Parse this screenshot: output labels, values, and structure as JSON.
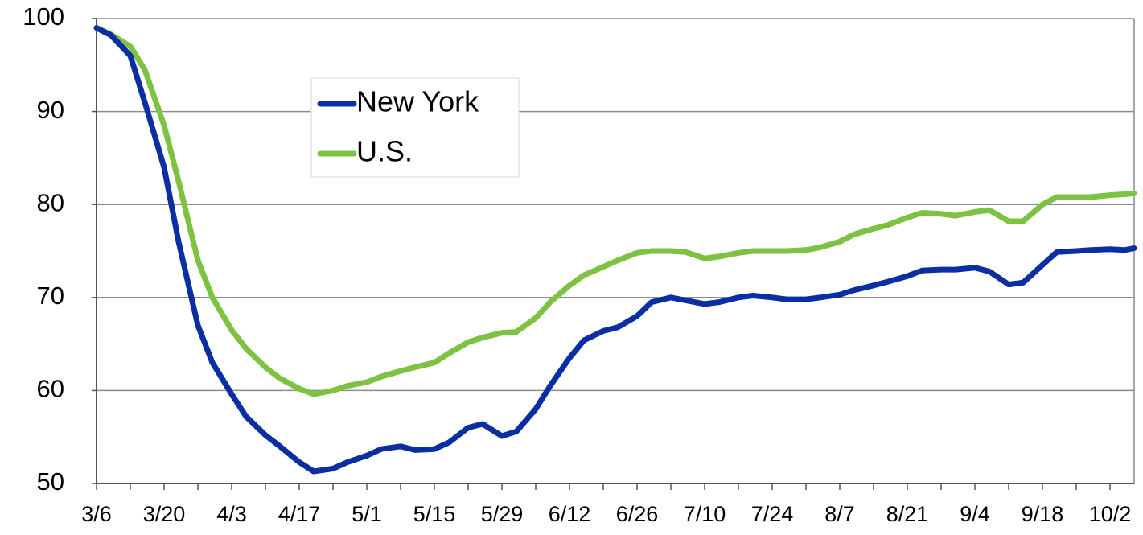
{
  "chart_data": {
    "type": "line",
    "x": [
      "3/6",
      "3/9",
      "3/13",
      "3/16",
      "3/20",
      "3/23",
      "3/27",
      "3/30",
      "4/3",
      "4/6",
      "4/10",
      "4/13",
      "4/17",
      "4/20",
      "4/24",
      "4/27",
      "5/1",
      "5/4",
      "5/8",
      "5/11",
      "5/15",
      "5/18",
      "5/22",
      "5/25",
      "5/29",
      "6/1",
      "6/5",
      "6/8",
      "6/12",
      "6/15",
      "6/19",
      "6/22",
      "6/26",
      "6/29",
      "7/3",
      "7/6",
      "7/10",
      "7/13",
      "7/17",
      "7/20",
      "7/24",
      "7/27",
      "7/31",
      "8/3",
      "8/7",
      "8/10",
      "8/14",
      "8/17",
      "8/21",
      "8/24",
      "8/28",
      "8/31",
      "9/4",
      "9/7",
      "9/11",
      "9/14",
      "9/18",
      "9/21",
      "9/25",
      "9/28",
      "10/2",
      "10/5",
      "10/7"
    ],
    "series": [
      {
        "name": "New York",
        "color": "#0b2ea3",
        "values": [
          99,
          98.2,
          96,
          91,
          84,
          76,
          67,
          63,
          59.6,
          57.2,
          55.2,
          54,
          52.3,
          51.3,
          51.6,
          52.3,
          53,
          53.7,
          54,
          53.6,
          53.7,
          54.4,
          56,
          56.4,
          55.1,
          55.6,
          58,
          60.5,
          63.5,
          65.4,
          66.4,
          66.8,
          68,
          69.5,
          70,
          69.7,
          69.3,
          69.5,
          70,
          70.2,
          70,
          69.8,
          69.8,
          70,
          70.3,
          70.8,
          71.3,
          71.7,
          72.3,
          72.9,
          73,
          73,
          73.2,
          72.8,
          71.4,
          71.6,
          73.5,
          74.9,
          75,
          75.1,
          75.2,
          75.1,
          75.3
        ]
      },
      {
        "name": "U.S.",
        "color": "#7dc242",
        "values": [
          99,
          98.3,
          97,
          94.5,
          88.5,
          82.5,
          74,
          70,
          66.5,
          64.5,
          62.5,
          61.3,
          60.2,
          59.6,
          60,
          60.5,
          60.9,
          61.5,
          62.1,
          62.5,
          63,
          64,
          65.2,
          65.7,
          66.2,
          66.3,
          67.8,
          69.5,
          71.3,
          72.4,
          73.3,
          74,
          74.8,
          75,
          75,
          74.9,
          74.2,
          74.4,
          74.8,
          75,
          75,
          75,
          75.1,
          75.4,
          76,
          76.8,
          77.4,
          77.8,
          78.6,
          79.1,
          79,
          78.8,
          79.2,
          79.4,
          78.2,
          78.2,
          80,
          80.8,
          80.8,
          80.8,
          81,
          81.1,
          81.2
        ]
      }
    ],
    "xlim": [
      "3/6",
      "10/7"
    ],
    "xticks": [
      "3/6",
      "3/20",
      "4/3",
      "4/17",
      "5/1",
      "5/15",
      "5/29",
      "6/12",
      "6/26",
      "7/10",
      "7/24",
      "8/7",
      "8/21",
      "9/4",
      "9/18",
      "10/2"
    ],
    "ylim": [
      50,
      100
    ],
    "yticks": [
      50,
      60,
      70,
      80,
      90,
      100
    ],
    "grid": true
  }
}
